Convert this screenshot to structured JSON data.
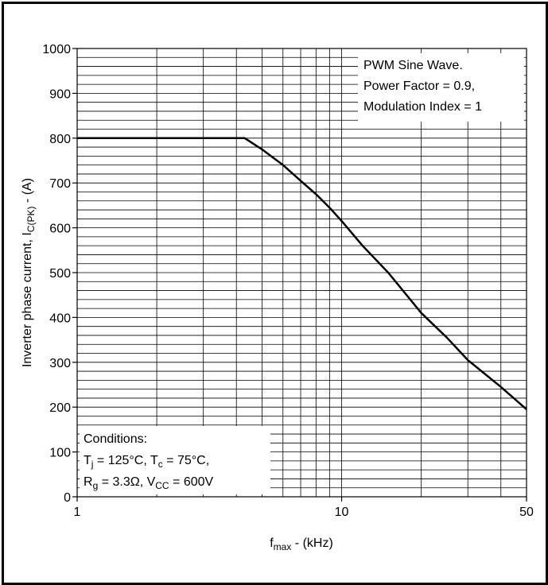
{
  "chart_data": {
    "type": "line",
    "xlabel": "f",
    "xlabel_sub": "max",
    "xlabel_unit": " - (kHz)",
    "ylabel": "Inverter phase current, I",
    "ylabel_sub": "C(PK)",
    "ylabel_unit": " - (A)",
    "x_scale": "log",
    "xlim": [
      1,
      50
    ],
    "ylim": [
      0,
      1000
    ],
    "x_ticks": [
      1,
      10,
      50
    ],
    "x_tick_labels": [
      "1",
      "10",
      "50"
    ],
    "y_ticks": [
      0,
      100,
      200,
      300,
      400,
      500,
      600,
      700,
      800,
      900,
      1000
    ],
    "y_tick_labels": [
      "0",
      "100",
      "200",
      "300",
      "400",
      "500",
      "600",
      "700",
      "800",
      "900",
      "1000"
    ],
    "grid": true,
    "series": [
      {
        "x": [
          1,
          4.3,
          5,
          6,
          7,
          8,
          9,
          10,
          12,
          15,
          20,
          25,
          30,
          40,
          50
        ],
        "y": [
          800,
          800,
          775,
          740,
          705,
          675,
          645,
          615,
          560,
          500,
          410,
          355,
          305,
          245,
          195
        ],
        "color": "#000000"
      }
    ],
    "annotations": {
      "top_right": [
        "PWM Sine Wave.",
        "Power Factor = 0.9,",
        "Modulation Index = 1"
      ],
      "conditions_title": "Conditions:",
      "cond_line1": {
        "a": "T",
        "a_sub": "j",
        "b": " = 125°C, T",
        "b_sub": "c",
        "c": " = 75°C,"
      },
      "cond_line2": {
        "a": "R",
        "a_sub": "g",
        "b": " = 3.3Ω, V",
        "b_sub": "CC",
        "c": " = 600V"
      }
    }
  }
}
